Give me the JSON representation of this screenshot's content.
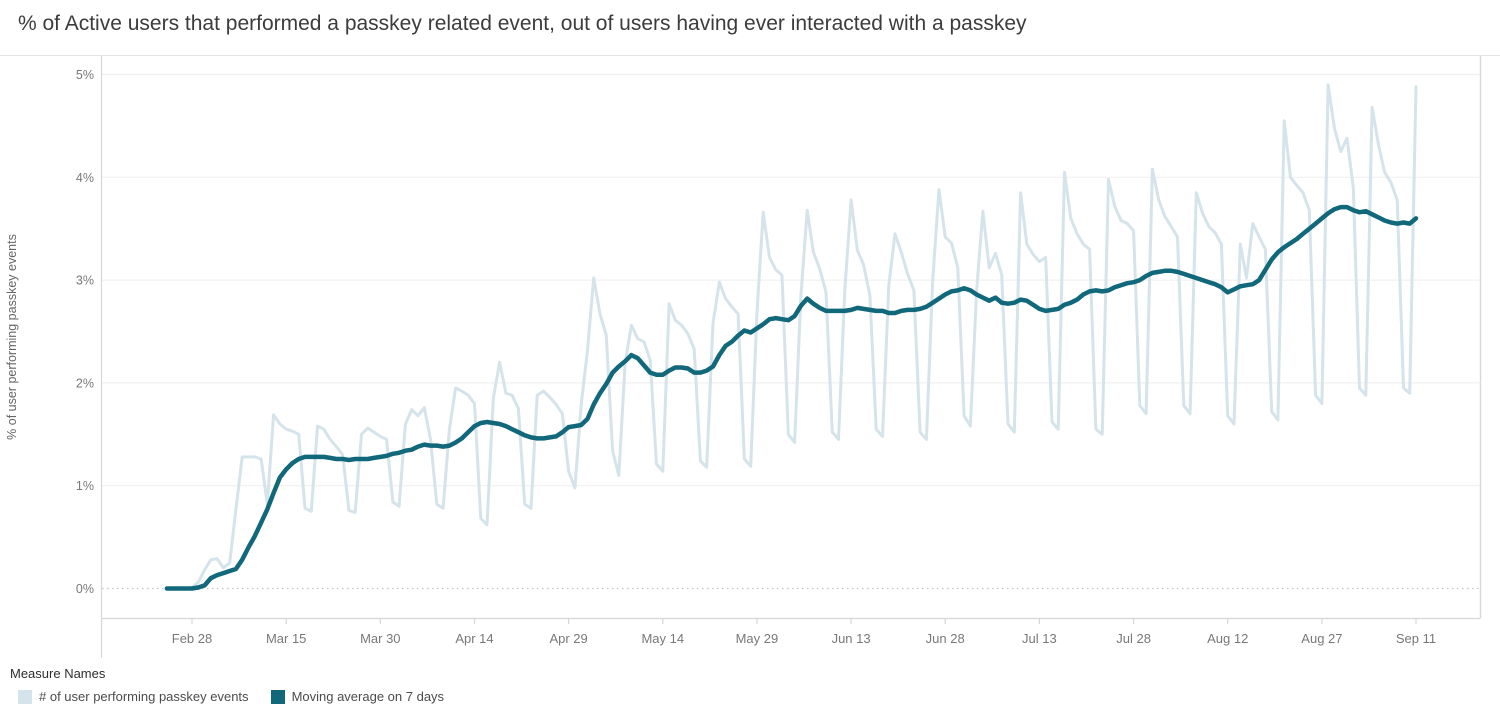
{
  "title": "% of Active users that performed a passkey related event, out of users having ever interacted with a passkey",
  "axes": {
    "y_title": "% of user performing passkey events",
    "y_ticks": [
      {
        "label": "0%",
        "value": 0
      },
      {
        "label": "1%",
        "value": 1
      },
      {
        "label": "2%",
        "value": 2
      },
      {
        "label": "3%",
        "value": 3
      },
      {
        "label": "4%",
        "value": 4
      },
      {
        "label": "5%",
        "value": 5
      }
    ],
    "x_ticks": [
      {
        "label": "Feb 28",
        "day": 4
      },
      {
        "label": "Mar 15",
        "day": 19
      },
      {
        "label": "Mar 30",
        "day": 34
      },
      {
        "label": "Apr 14",
        "day": 49
      },
      {
        "label": "Apr 29",
        "day": 64
      },
      {
        "label": "May 14",
        "day": 79
      },
      {
        "label": "May 29",
        "day": 94
      },
      {
        "label": "Jun 13",
        "day": 109
      },
      {
        "label": "Jun 28",
        "day": 124
      },
      {
        "label": "Jul 13",
        "day": 139
      },
      {
        "label": "Jul 28",
        "day": 154
      },
      {
        "label": "Aug 12",
        "day": 169
      },
      {
        "label": "Aug 27",
        "day": 184
      },
      {
        "label": "Sep 11",
        "day": 199
      }
    ]
  },
  "legend": {
    "title": "Measure Names",
    "items": [
      {
        "label": "# of user performing passkey events",
        "color": "#d5e4ea"
      },
      {
        "label": "Moving average on 7 days",
        "color": "#11687a"
      }
    ]
  },
  "colors": {
    "series_daily": "#d5e4ea",
    "series_moving_avg": "#11687a",
    "gridline": "#f0f0f0",
    "zero_line": "#c4c4c4",
    "axis_line": "#d7d7d7",
    "border": "#e2e2e2",
    "title_text": "#3c3c3c",
    "tick_text": "#787878",
    "axis_title_text": "#666666"
  },
  "chart_data": {
    "type": "line",
    "title": "% of Active users that performed a passkey related event, out of users having ever interacted with a passkey",
    "xlabel": "",
    "ylabel": "% of user performing passkey events",
    "x_unit": "day",
    "x_start_label": "Feb 24",
    "x_end_label": "Sep 11",
    "ylim": [
      0,
      5
    ],
    "y_unit": "%",
    "grid": true,
    "legend_position": "bottom-left",
    "series": [
      {
        "name": "# of user performing passkey events",
        "color": "#d5e4ea",
        "values": [
          0,
          0,
          0,
          0,
          0.01,
          0.06,
          0.18,
          0.28,
          0.29,
          0.2,
          0.25,
          0.77,
          1.28,
          1.28,
          1.28,
          1.26,
          0.82,
          1.69,
          1.6,
          1.55,
          1.53,
          1.5,
          0.78,
          0.75,
          1.58,
          1.55,
          1.45,
          1.38,
          1.3,
          0.76,
          0.74,
          1.5,
          1.56,
          1.52,
          1.48,
          1.45,
          0.84,
          0.8,
          1.6,
          1.74,
          1.68,
          1.76,
          1.45,
          0.82,
          0.78,
          1.55,
          1.95,
          1.92,
          1.88,
          1.8,
          0.68,
          0.62,
          1.85,
          2.2,
          1.9,
          1.88,
          1.75,
          0.82,
          0.78,
          1.88,
          1.92,
          1.86,
          1.79,
          1.7,
          1.14,
          0.98,
          1.79,
          2.32,
          3.02,
          2.67,
          2.46,
          1.34,
          1.1,
          2.19,
          2.56,
          2.43,
          2.4,
          2.22,
          1.21,
          1.14,
          2.77,
          2.61,
          2.56,
          2.48,
          2.33,
          1.24,
          1.18,
          2.58,
          2.98,
          2.82,
          2.74,
          2.67,
          1.26,
          1.19,
          2.67,
          3.66,
          3.22,
          3.1,
          3.05,
          1.5,
          1.42,
          2.85,
          3.68,
          3.27,
          3.11,
          2.88,
          1.52,
          1.45,
          2.9,
          3.78,
          3.29,
          3.15,
          2.85,
          1.55,
          1.48,
          2.95,
          3.45,
          3.27,
          3.06,
          2.9,
          1.52,
          1.45,
          3.0,
          3.88,
          3.42,
          3.36,
          3.12,
          1.68,
          1.58,
          2.9,
          3.67,
          3.12,
          3.26,
          3.05,
          1.6,
          1.52,
          3.85,
          3.35,
          3.25,
          3.18,
          3.22,
          1.62,
          1.55,
          4.05,
          3.6,
          3.45,
          3.35,
          3.3,
          1.55,
          1.5,
          3.98,
          3.72,
          3.58,
          3.55,
          3.48,
          1.78,
          1.7,
          4.08,
          3.78,
          3.62,
          3.52,
          3.42,
          1.78,
          1.7,
          3.85,
          3.65,
          3.52,
          3.46,
          3.35,
          1.68,
          1.6,
          3.35,
          3.02,
          3.55,
          3.42,
          3.3,
          1.72,
          1.64,
          4.55,
          4.0,
          3.92,
          3.85,
          3.68,
          1.88,
          1.8,
          4.9,
          4.48,
          4.25,
          4.38,
          3.9,
          1.95,
          1.88,
          4.68,
          4.32,
          4.05,
          3.95,
          3.78,
          1.95,
          1.9,
          4.88
        ]
      },
      {
        "name": "Moving average on 7 days",
        "color": "#11687a",
        "values": [
          0,
          0,
          0,
          0,
          0,
          0.01,
          0.03,
          0.1,
          0.13,
          0.15,
          0.17,
          0.19,
          0.28,
          0.4,
          0.51,
          0.64,
          0.77,
          0.93,
          1.08,
          1.16,
          1.22,
          1.26,
          1.28,
          1.28,
          1.28,
          1.28,
          1.27,
          1.26,
          1.26,
          1.25,
          1.26,
          1.26,
          1.26,
          1.27,
          1.28,
          1.29,
          1.31,
          1.32,
          1.34,
          1.35,
          1.38,
          1.4,
          1.39,
          1.39,
          1.38,
          1.39,
          1.42,
          1.46,
          1.52,
          1.58,
          1.61,
          1.62,
          1.61,
          1.6,
          1.58,
          1.55,
          1.52,
          1.49,
          1.47,
          1.46,
          1.46,
          1.47,
          1.48,
          1.52,
          1.57,
          1.58,
          1.59,
          1.65,
          1.79,
          1.9,
          1.99,
          2.1,
          2.16,
          2.21,
          2.27,
          2.24,
          2.17,
          2.1,
          2.08,
          2.08,
          2.12,
          2.15,
          2.15,
          2.14,
          2.1,
          2.1,
          2.12,
          2.16,
          2.27,
          2.36,
          2.4,
          2.46,
          2.51,
          2.49,
          2.53,
          2.57,
          2.62,
          2.63,
          2.62,
          2.61,
          2.65,
          2.75,
          2.82,
          2.77,
          2.73,
          2.7,
          2.7,
          2.7,
          2.7,
          2.71,
          2.73,
          2.72,
          2.71,
          2.7,
          2.7,
          2.68,
          2.68,
          2.7,
          2.71,
          2.71,
          2.72,
          2.74,
          2.78,
          2.82,
          2.86,
          2.89,
          2.9,
          2.92,
          2.9,
          2.86,
          2.83,
          2.8,
          2.83,
          2.78,
          2.77,
          2.78,
          2.81,
          2.8,
          2.76,
          2.72,
          2.7,
          2.71,
          2.72,
          2.76,
          2.78,
          2.81,
          2.86,
          2.89,
          2.9,
          2.89,
          2.9,
          2.93,
          2.95,
          2.97,
          2.98,
          3.0,
          3.04,
          3.07,
          3.08,
          3.09,
          3.09,
          3.08,
          3.06,
          3.04,
          3.02,
          3.0,
          2.98,
          2.96,
          2.93,
          2.88,
          2.91,
          2.94,
          2.95,
          2.96,
          3.0,
          3.1,
          3.2,
          3.27,
          3.32,
          3.36,
          3.4,
          3.45,
          3.5,
          3.55,
          3.6,
          3.65,
          3.69,
          3.71,
          3.71,
          3.68,
          3.66,
          3.67,
          3.64,
          3.61,
          3.58,
          3.56,
          3.55,
          3.56,
          3.55,
          3.6
        ]
      }
    ]
  }
}
